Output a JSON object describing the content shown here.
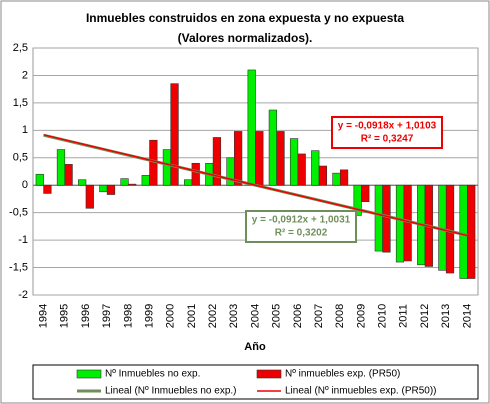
{
  "chart_data": {
    "type": "bar",
    "title": "Inmuebles construidos  en zona expuesta y no expuesta (Valores normalizados).",
    "xlabel": "Año",
    "categories": [
      "1994",
      "1995",
      "1996",
      "1997",
      "1998",
      "1999",
      "2000",
      "2001",
      "2002",
      "2003",
      "2004",
      "2005",
      "2006",
      "2007",
      "2008",
      "2009",
      "2010",
      "2011",
      "2012",
      "2013",
      "2014"
    ],
    "series": [
      {
        "name": "Nº Inmuebles no exp.",
        "color": "#00ee00",
        "values": [
          0.2,
          0.65,
          0.1,
          -0.12,
          0.12,
          0.18,
          0.65,
          0.1,
          0.4,
          0.5,
          2.1,
          1.37,
          0.85,
          0.63,
          0.22,
          -0.55,
          -1.2,
          -1.4,
          -1.45,
          -1.55,
          -1.7
        ]
      },
      {
        "name": "Nº inmuebles exp. (PR50)",
        "color": "#ee0000",
        "values": [
          -0.15,
          0.38,
          -0.42,
          -0.17,
          0.02,
          0.82,
          1.85,
          0.4,
          0.87,
          0.98,
          0.98,
          0.98,
          0.57,
          0.35,
          0.28,
          -0.3,
          -1.22,
          -1.38,
          -1.48,
          -1.6,
          -1.7
        ]
      }
    ],
    "trendlines": [
      {
        "name": "Lineal (Nº Inmuebles no exp.)",
        "color": "#6f8f5a",
        "slope": -0.0912,
        "intercept": 1.0031,
        "equation": "y = -0,0912x + 1,0031",
        "r2": "R² = 0,3202"
      },
      {
        "name": "Lineal (Nº inmuebles exp. (PR50))",
        "color": "#ee0000",
        "slope": -0.0918,
        "intercept": 1.0103,
        "equation": "y = -0,0918x + 1,0103",
        "r2": "R² = 0,3247"
      }
    ],
    "ylim": [
      -2,
      2.5
    ],
    "yticks": [
      -2,
      {
        "value": -1.5,
        "label": "-1,5"
      },
      -1,
      {
        "value": -0.5,
        "label": "-0,5"
      },
      0,
      {
        "value": 0.5,
        "label": "0,5"
      },
      1,
      {
        "value": 1.5,
        "label": "1,5"
      },
      2,
      {
        "value": 2.5,
        "label": "2,5"
      }
    ],
    "grid": true,
    "legend": "bottom"
  }
}
